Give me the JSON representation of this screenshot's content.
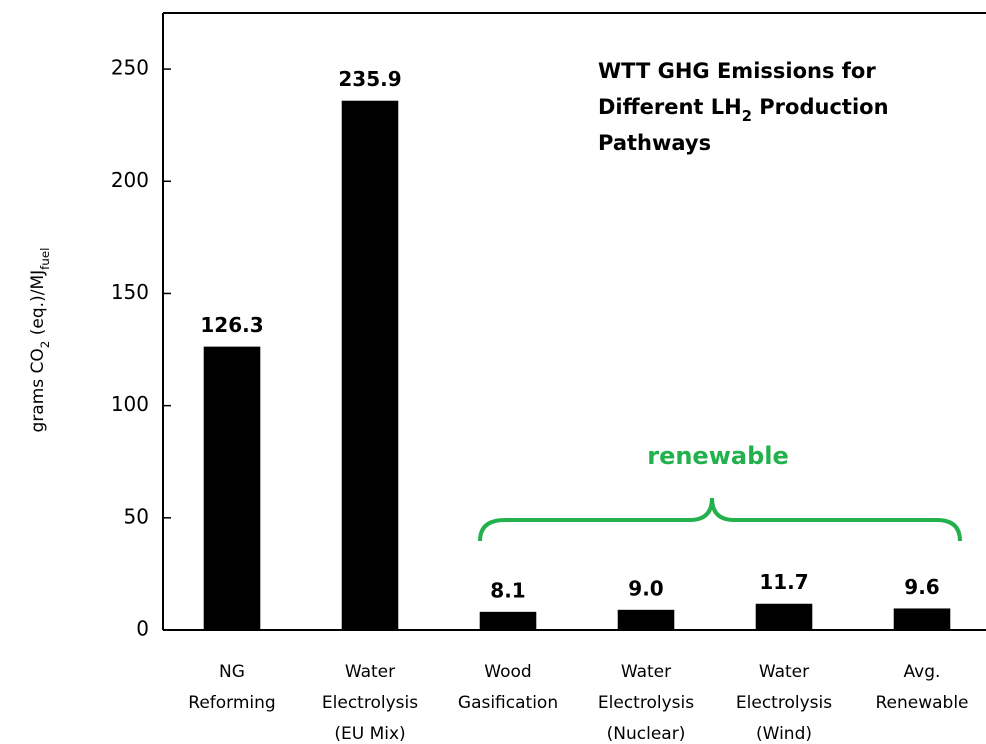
{
  "chart_data": {
    "type": "bar",
    "title": [
      [
        {
          "text": "WTT GHG Emissions for"
        }
      ],
      [
        {
          "text": "Different LH"
        },
        {
          "text": "2",
          "sub": true
        },
        {
          "text": " Production"
        }
      ],
      [
        {
          "text": "Pathways"
        }
      ]
    ],
    "ylabel": [
      {
        "text": "grams CO"
      },
      {
        "text": "2",
        "sub": true
      },
      {
        "text": " (eq.)/MJ"
      },
      {
        "text": "fuel",
        "sub": true
      }
    ],
    "categories": [
      [
        "NG",
        "Reforming"
      ],
      [
        "Water",
        "Electrolysis",
        "(EU Mix)"
      ],
      [
        "Wood",
        "Gasification"
      ],
      [
        "Water",
        "Electrolysis",
        "(Nuclear)"
      ],
      [
        "Water",
        "Electrolysis",
        "(Wind)"
      ],
      [
        "Avg.",
        "Renewable"
      ]
    ],
    "values": [
      126.3,
      235.9,
      8.1,
      9.0,
      11.7,
      9.6
    ],
    "value_labels": [
      "126.3",
      "235.9",
      "8.1",
      "9.0",
      "11.7",
      "9.6"
    ],
    "color": "#000000",
    "ylim": [
      0,
      275
    ],
    "yticks": [
      0,
      50,
      100,
      150,
      200,
      250
    ],
    "annotation": {
      "text": "renewable",
      "color": "#22b14c"
    }
  }
}
